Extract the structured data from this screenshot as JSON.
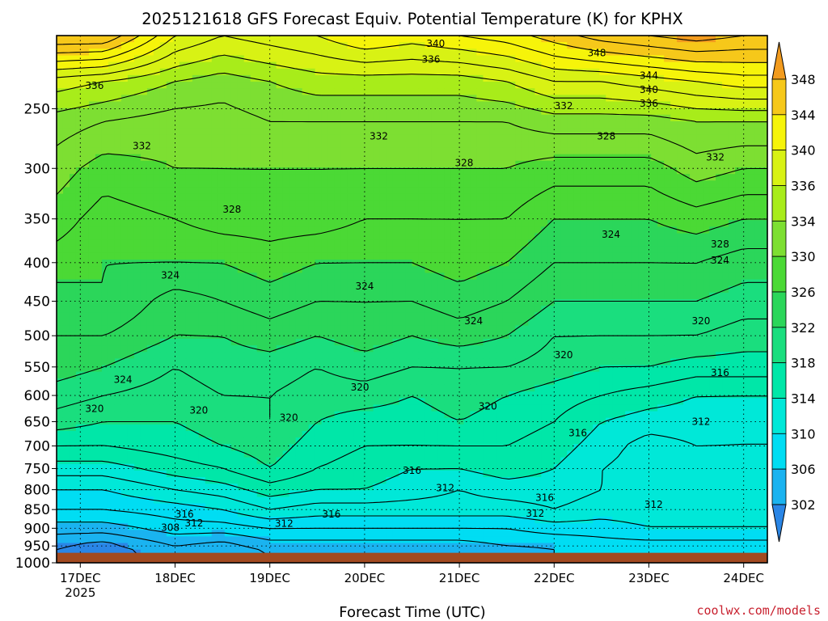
{
  "chart_data": {
    "type": "heatmap",
    "title": "2025121618 GFS Forecast Equiv. Potential Temperature (K) for KPHX",
    "xlabel": "Forecast Time (UTC)",
    "ylabel": "",
    "x_ticks": [
      "17DEC",
      "18DEC",
      "19DEC",
      "20DEC",
      "21DEC",
      "22DEC",
      "23DEC",
      "24DEC"
    ],
    "x_year_label": "2025",
    "x_range_days": [
      16.75,
      24.25
    ],
    "y_ticks": [
      250,
      300,
      350,
      400,
      450,
      500,
      550,
      600,
      650,
      700,
      750,
      800,
      850,
      900,
      950,
      1000
    ],
    "y_range_hpa": [
      200,
      1000
    ],
    "ground_level_hpa": 970,
    "colorbar": {
      "labels": [
        302,
        306,
        310,
        314,
        318,
        322,
        326,
        330,
        334,
        336,
        340,
        344,
        348
      ],
      "bins": [
        {
          "lo": 298,
          "hi": 302,
          "color": "#2a86e6"
        },
        {
          "lo": 302,
          "hi": 306,
          "color": "#1ab3f0"
        },
        {
          "lo": 306,
          "hi": 310,
          "color": "#00ddf3"
        },
        {
          "lo": 310,
          "hi": 314,
          "color": "#00e8d8"
        },
        {
          "lo": 314,
          "hi": 318,
          "color": "#00e7a8"
        },
        {
          "lo": 318,
          "hi": 322,
          "color": "#1ade7e"
        },
        {
          "lo": 322,
          "hi": 326,
          "color": "#2bd65a"
        },
        {
          "lo": 326,
          "hi": 330,
          "color": "#4bd935"
        },
        {
          "lo": 330,
          "hi": 334,
          "color": "#7ddf32"
        },
        {
          "lo": 334,
          "hi": 336,
          "color": "#a8ec1a"
        },
        {
          "lo": 336,
          "hi": 340,
          "color": "#d8f214"
        },
        {
          "lo": 340,
          "hi": 344,
          "color": "#f6f40a"
        },
        {
          "lo": 344,
          "hi": 348,
          "color": "#f6c81a"
        },
        {
          "lo": 348,
          "hi": 352,
          "color": "#f29b1e"
        }
      ]
    },
    "profiles": [
      {
        "time": 16.75,
        "p": [
          200,
          230,
          260,
          300,
          350,
          400,
          450,
          500,
          550,
          600,
          650,
          700,
          750,
          800,
          850,
          900,
          950,
          970
        ],
        "theta_e": [
          348,
          337,
          333,
          331,
          329,
          327,
          325,
          324,
          323,
          321,
          319,
          316,
          313,
          310,
          308,
          305,
          302,
          302
        ]
      },
      {
        "time": 17.25,
        "p": [
          200,
          230,
          260,
          300,
          350,
          400,
          450,
          500,
          550,
          600,
          650,
          700,
          750,
          800,
          850,
          900,
          950,
          970
        ],
        "theta_e": [
          348,
          336,
          332,
          329,
          327,
          326,
          326,
          324,
          322,
          320,
          318,
          316,
          313,
          310,
          308,
          305,
          301,
          301
        ]
      },
      {
        "time": 18.0,
        "p": [
          200,
          230,
          260,
          300,
          350,
          400,
          450,
          500,
          550,
          600,
          650,
          700,
          750,
          800,
          850,
          900,
          950,
          970
        ],
        "theta_e": [
          340,
          334,
          331,
          330,
          328,
          326,
          323,
          322,
          320,
          319,
          318,
          317,
          315,
          312,
          309,
          307,
          304,
          303
        ]
      },
      {
        "time": 18.5,
        "p": [
          200,
          230,
          260,
          300,
          350,
          400,
          450,
          500,
          550,
          600,
          650,
          700,
          750,
          800,
          850,
          900,
          950,
          970
        ],
        "theta_e": [
          338,
          333,
          331,
          330,
          329,
          326,
          324,
          322,
          321,
          320,
          319,
          318,
          316,
          313,
          310,
          307,
          303,
          302
        ]
      },
      {
        "time": 19.0,
        "p": [
          200,
          230,
          260,
          300,
          350,
          400,
          450,
          500,
          550,
          600,
          650,
          700,
          750,
          800,
          850,
          900,
          950,
          970
        ],
        "theta_e": [
          339,
          334,
          332,
          330,
          329,
          327,
          325,
          323,
          321,
          320,
          320,
          319,
          318,
          315,
          312,
          308,
          305,
          304
        ]
      },
      {
        "time": 19.5,
        "p": [
          200,
          230,
          260,
          300,
          350,
          400,
          450,
          500,
          550,
          600,
          650,
          700,
          750,
          800,
          850,
          900,
          950,
          970
        ],
        "theta_e": [
          340,
          335,
          332,
          330,
          329,
          326,
          324,
          322,
          320,
          319,
          318,
          317,
          316,
          314,
          311,
          308,
          305,
          305
        ]
      },
      {
        "time": 20.0,
        "p": [
          200,
          230,
          260,
          300,
          350,
          400,
          450,
          500,
          550,
          600,
          650,
          700,
          750,
          800,
          850,
          900,
          950,
          970
        ],
        "theta_e": [
          342,
          335,
          332,
          330,
          328,
          326,
          324,
          323,
          321,
          319,
          317,
          316,
          315,
          314,
          311,
          308,
          305,
          305
        ]
      },
      {
        "time": 20.5,
        "p": [
          200,
          230,
          260,
          300,
          350,
          400,
          450,
          500,
          550,
          600,
          650,
          700,
          750,
          800,
          850,
          900,
          950,
          970
        ],
        "theta_e": [
          341,
          335,
          332,
          330,
          328,
          326,
          324,
          322,
          320,
          318,
          317,
          316,
          314,
          313,
          311,
          308,
          305,
          305
        ]
      },
      {
        "time": 21.0,
        "p": [
          200,
          230,
          260,
          300,
          350,
          400,
          450,
          500,
          550,
          600,
          650,
          700,
          750,
          800,
          850,
          900,
          950,
          970
        ],
        "theta_e": [
          342,
          335,
          332,
          330,
          328,
          327,
          325,
          323,
          320,
          319,
          318,
          316,
          314,
          312,
          311,
          308,
          305,
          305
        ]
      },
      {
        "time": 21.5,
        "p": [
          200,
          230,
          260,
          300,
          350,
          400,
          450,
          500,
          550,
          600,
          650,
          700,
          750,
          800,
          850,
          900,
          950,
          970
        ],
        "theta_e": [
          343,
          336,
          332,
          330,
          328,
          326,
          324,
          322,
          320,
          318,
          317,
          316,
          315,
          313,
          311,
          308,
          306,
          305
        ]
      },
      {
        "time": 22.0,
        "p": [
          200,
          230,
          260,
          300,
          350,
          400,
          450,
          500,
          550,
          600,
          650,
          700,
          750,
          800,
          850,
          900,
          950,
          970
        ],
        "theta_e": [
          345,
          338,
          333,
          329,
          326,
          324,
          322,
          320,
          319,
          317,
          316,
          315,
          314,
          313,
          312,
          309,
          306,
          306
        ]
      },
      {
        "time": 22.5,
        "p": [
          200,
          230,
          260,
          300,
          350,
          400,
          450,
          500,
          550,
          600,
          650,
          700,
          750,
          800,
          850,
          900,
          950,
          970
        ],
        "theta_e": [
          347,
          338,
          333,
          329,
          326,
          324,
          322,
          320,
          318,
          316,
          314,
          313,
          312,
          312,
          311,
          309,
          307,
          306
        ]
      },
      {
        "time": 23.0,
        "p": [
          200,
          230,
          260,
          300,
          350,
          400,
          450,
          500,
          550,
          600,
          650,
          700,
          750,
          800,
          850,
          900,
          950,
          970
        ],
        "theta_e": [
          348,
          339,
          333,
          329,
          326,
          324,
          322,
          320,
          318,
          315,
          313,
          311,
          311,
          311,
          311,
          310,
          307,
          306
        ]
      },
      {
        "time": 23.5,
        "p": [
          200,
          230,
          260,
          300,
          350,
          400,
          450,
          500,
          550,
          600,
          650,
          700,
          750,
          800,
          850,
          900,
          950,
          970
        ],
        "theta_e": [
          349,
          340,
          334,
          331,
          327,
          324,
          322,
          320,
          317,
          314,
          313,
          312,
          311,
          311,
          311,
          310,
          307,
          306
        ]
      },
      {
        "time": 24.0,
        "p": [
          200,
          230,
          260,
          300,
          350,
          400,
          450,
          500,
          550,
          600,
          650,
          700,
          750,
          800,
          850,
          900,
          950,
          970
        ],
        "theta_e": [
          348,
          341,
          334,
          330,
          326,
          323,
          321,
          319,
          317,
          314,
          312,
          312,
          311,
          311,
          311,
          310,
          307,
          306
        ]
      },
      {
        "time": 24.25,
        "p": [
          200,
          230,
          260,
          300,
          350,
          400,
          450,
          500,
          550,
          600,
          650,
          700,
          750,
          800,
          850,
          900,
          950,
          970
        ],
        "theta_e": [
          348,
          341,
          334,
          330,
          326,
          323,
          321,
          319,
          317,
          314,
          312,
          312,
          311,
          311,
          311,
          310,
          307,
          306
        ]
      }
    ],
    "contour_levels": [
      302,
      304,
      306,
      308,
      310,
      312,
      314,
      316,
      318,
      320,
      322,
      324,
      326,
      328,
      330,
      332,
      334,
      336,
      338,
      340,
      342,
      344,
      346,
      348
    ],
    "contour_labels": [
      {
        "text": "340",
        "time": 20.75,
        "p": 205
      },
      {
        "text": "336",
        "time": 20.7,
        "p": 215
      },
      {
        "text": "348",
        "time": 22.45,
        "p": 211
      },
      {
        "text": "344",
        "time": 23.0,
        "p": 226
      },
      {
        "text": "340",
        "time": 23.0,
        "p": 236
      },
      {
        "text": "336",
        "time": 23.0,
        "p": 246
      },
      {
        "text": "332",
        "time": 22.1,
        "p": 248
      },
      {
        "text": "336",
        "time": 17.15,
        "p": 233
      },
      {
        "text": "332",
        "time": 17.65,
        "p": 280
      },
      {
        "text": "332",
        "time": 20.15,
        "p": 272
      },
      {
        "text": "328",
        "time": 22.55,
        "p": 272
      },
      {
        "text": "332",
        "time": 23.7,
        "p": 290
      },
      {
        "text": "328",
        "time": 21.05,
        "p": 295
      },
      {
        "text": "328",
        "time": 18.6,
        "p": 340
      },
      {
        "text": "324",
        "time": 22.6,
        "p": 367
      },
      {
        "text": "328",
        "time": 23.75,
        "p": 378
      },
      {
        "text": "324",
        "time": 23.75,
        "p": 397
      },
      {
        "text": "324",
        "time": 17.95,
        "p": 416
      },
      {
        "text": "324",
        "time": 20.0,
        "p": 430
      },
      {
        "text": "324",
        "time": 21.15,
        "p": 478
      },
      {
        "text": "320",
        "time": 23.55,
        "p": 478
      },
      {
        "text": "320",
        "time": 22.1,
        "p": 530
      },
      {
        "text": "316",
        "time": 23.75,
        "p": 560
      },
      {
        "text": "324",
        "time": 17.45,
        "p": 572
      },
      {
        "text": "320",
        "time": 19.95,
        "p": 585
      },
      {
        "text": "320",
        "time": 17.15,
        "p": 625
      },
      {
        "text": "320",
        "time": 18.25,
        "p": 628
      },
      {
        "text": "320",
        "time": 21.3,
        "p": 620
      },
      {
        "text": "320",
        "time": 19.2,
        "p": 642
      },
      {
        "text": "312",
        "time": 23.55,
        "p": 650
      },
      {
        "text": "316",
        "time": 22.25,
        "p": 673
      },
      {
        "text": "316",
        "time": 20.5,
        "p": 755
      },
      {
        "text": "312",
        "time": 20.85,
        "p": 796
      },
      {
        "text": "316",
        "time": 21.9,
        "p": 820
      },
      {
        "text": "312",
        "time": 23.05,
        "p": 837
      },
      {
        "text": "316",
        "time": 18.1,
        "p": 862
      },
      {
        "text": "316",
        "time": 19.65,
        "p": 862
      },
      {
        "text": "312",
        "time": 21.8,
        "p": 860
      },
      {
        "text": "312",
        "time": 18.2,
        "p": 886
      },
      {
        "text": "312",
        "time": 19.15,
        "p": 887
      },
      {
        "text": "308",
        "time": 17.95,
        "p": 898
      }
    ]
  },
  "credit": "coolwx.com/models"
}
